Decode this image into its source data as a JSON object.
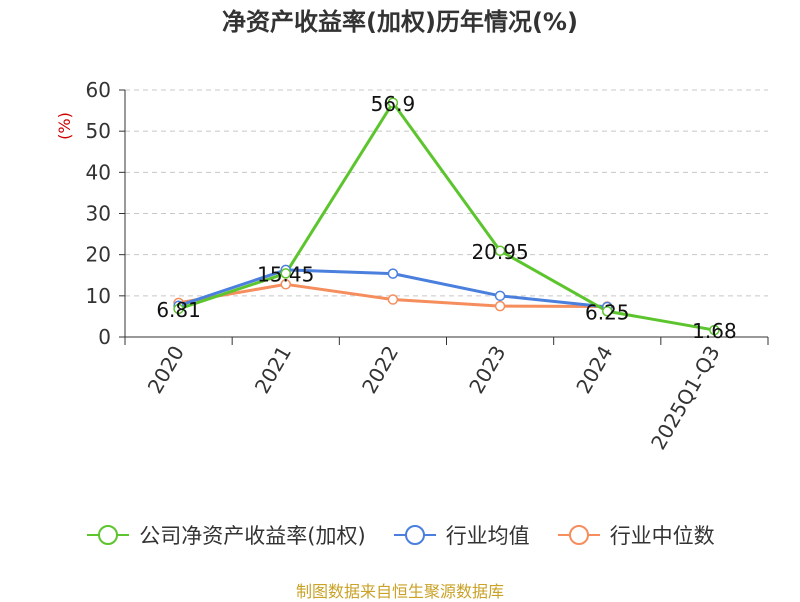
{
  "chart_data": {
    "type": "line",
    "title": "净资产收益率(加权)历年情况(%)",
    "ylabel": "(%)",
    "xlabel": "",
    "categories": [
      "2020",
      "2021",
      "2022",
      "2023",
      "2024",
      "2025Q1-Q3"
    ],
    "ylim": [
      0,
      60
    ],
    "yticks": [
      0,
      10,
      20,
      30,
      40,
      50,
      60
    ],
    "grid": true,
    "legend_position": "bottom",
    "series": [
      {
        "name": "公司净资产收益率(加权)",
        "color": "#5cc52e",
        "values": [
          6.81,
          15.45,
          56.9,
          20.95,
          6.25,
          1.68
        ],
        "labels": [
          "6.81",
          "15.45",
          "56.9",
          "20.95",
          "6.25",
          "1.68"
        ]
      },
      {
        "name": "行业均值",
        "color": "#4a7fdd",
        "values": [
          7.6,
          16.3,
          15.4,
          10.0,
          7.3,
          null
        ]
      },
      {
        "name": "行业中位数",
        "color": "#f58d5c",
        "values": [
          8.3,
          12.8,
          9.1,
          7.5,
          7.4,
          null
        ]
      }
    ]
  },
  "footer": {
    "source": "制图数据来自恒生聚源数据库"
  }
}
